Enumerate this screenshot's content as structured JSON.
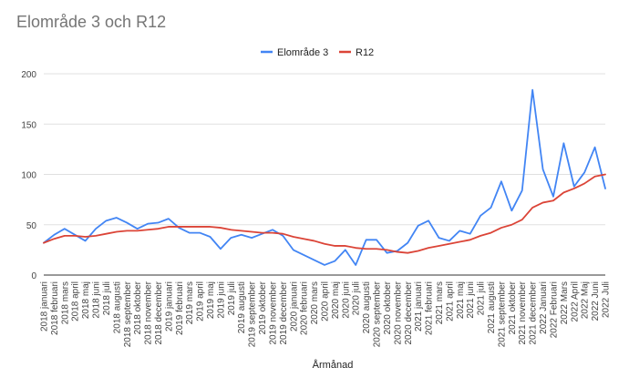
{
  "chart_data": {
    "type": "line",
    "title": "Elområde 3 och R12",
    "xlabel": "Årmånad",
    "ylabel": "",
    "ylim": [
      0,
      200
    ],
    "yticks": [
      0,
      50,
      100,
      150,
      200
    ],
    "grid": true,
    "legend": "top-center",
    "categories": [
      "2018 januari",
      "2018 februari",
      "2018 mars",
      "2018 april",
      "2018 maj",
      "2018 juni",
      "2018 juli",
      "2018 augusti",
      "2018 september",
      "2018 oktober",
      "2018 november",
      "2018 december",
      "2019 januari",
      "2019 februari",
      "2019 mars",
      "2019 april",
      "2019 maj",
      "2019 juni",
      "2019 juli",
      "2019 augusti",
      "2019 september",
      "2019 oktober",
      "2019 november",
      "2019 december",
      "2020 januari",
      "2020 februari",
      "2020 mars",
      "2020 april",
      "2020 maj",
      "2020 juni",
      "2020 juli",
      "2020 augusti",
      "2020 september",
      "2020 oktober",
      "2020 november",
      "2020 december",
      "2021 januari",
      "2021 februari",
      "2021 mars",
      "2021 april",
      "2021 maj",
      "2021 juni",
      "2021 juli",
      "2021 augusti",
      "2021 september",
      "2021 oktober",
      "2021 november",
      "2021 december",
      "2022 Januari",
      "2022 Februari",
      "2022 Mars",
      "2022 April",
      "2022 Maj",
      "2022 Juni",
      "2022 Juli"
    ],
    "series": [
      {
        "name": "Elområde 3",
        "color": "#4285f4",
        "values": [
          32,
          40,
          46,
          40,
          34,
          46,
          54,
          57,
          52,
          46,
          51,
          52,
          56,
          47,
          42,
          42,
          38,
          26,
          37,
          40,
          37,
          41,
          45,
          39,
          25,
          20,
          15,
          10,
          14,
          25,
          10,
          35,
          35,
          22,
          24,
          32,
          49,
          54,
          37,
          34,
          44,
          41,
          59,
          67,
          93,
          64,
          84,
          184,
          105,
          78,
          131,
          88,
          102,
          127,
          86
        ]
      },
      {
        "name": "R12",
        "color": "#db4437",
        "values": [
          32,
          36,
          39,
          39,
          38,
          39,
          41,
          43,
          44,
          44,
          45,
          46,
          48,
          48,
          48,
          48,
          48,
          47,
          45,
          44,
          43,
          42,
          42,
          41,
          38,
          36,
          34,
          31,
          29,
          29,
          27,
          26,
          26,
          25,
          23,
          22,
          24,
          27,
          29,
          31,
          33,
          35,
          39,
          42,
          47,
          50,
          55,
          67,
          72,
          74,
          82,
          86,
          91,
          98,
          100
        ]
      }
    ]
  }
}
